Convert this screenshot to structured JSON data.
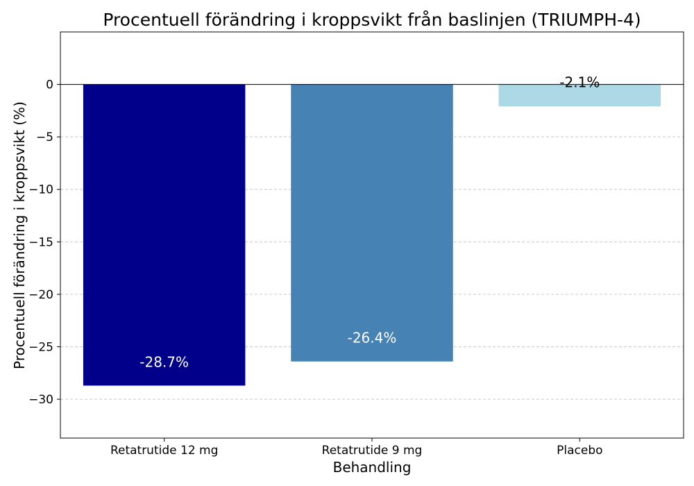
{
  "chart_data": {
    "type": "bar",
    "title": "Procentuell förändring i kroppsvikt från baslinjen (TRIUMPH-4)",
    "xlabel": "Behandling",
    "ylabel": "Procentuell förändring i kroppsvikt (%)",
    "categories": [
      "Retatrutide 12 mg",
      "Retatrutide 9 mg",
      "Placebo"
    ],
    "values": [
      -28.7,
      -26.4,
      -2.1
    ],
    "value_labels": [
      "-28.7%",
      "-26.4%",
      "-2.1%"
    ],
    "bar_colors": [
      "#00008b",
      "#4682b4",
      "#add8e6"
    ],
    "value_label_colors": [
      "#ffffff",
      "#ffffff",
      "#000000"
    ],
    "yticks": [
      0,
      -5,
      -10,
      -15,
      -20,
      -25,
      -30
    ],
    "ytick_labels": [
      "0",
      "−5",
      "−10",
      "−15",
      "−20",
      "−25",
      "−30"
    ],
    "ylim": [
      -33.7,
      5
    ],
    "grid": "horizontal dashed",
    "zero_line": true
  }
}
